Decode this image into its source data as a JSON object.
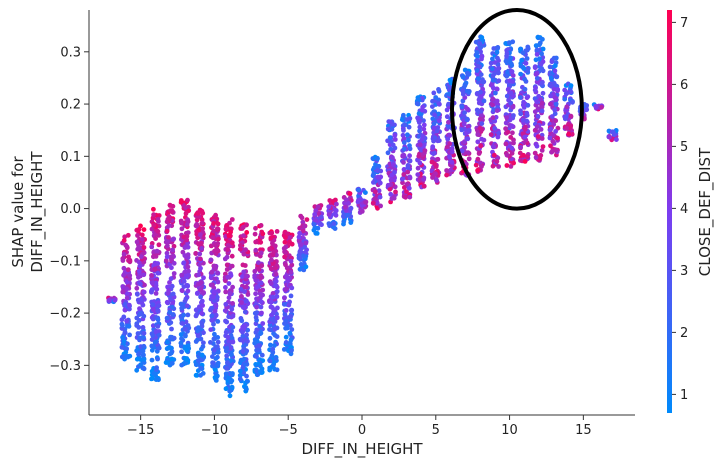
{
  "chart_data": {
    "type": "scatter",
    "title": "",
    "xlabel": "DIFF_IN_HEIGHT",
    "ylabel_lines": [
      "SHAP value for",
      "DIFF_IN_HEIGHT"
    ],
    "xlim": [
      -18.5,
      18.5
    ],
    "ylim": [
      -0.395,
      0.38
    ],
    "xticks": [
      -15,
      -10,
      -5,
      0,
      5,
      10,
      15
    ],
    "yticks": [
      -0.3,
      -0.2,
      -0.1,
      0.0,
      0.1,
      0.2,
      0.3
    ],
    "grid": false,
    "color_by": {
      "label": "CLOSE_DEF_DIST",
      "range": [
        0.7,
        7.2
      ],
      "ticks": [
        1,
        2,
        3,
        4,
        5,
        6,
        7
      ],
      "colors": [
        "#008afb",
        "#7c3df0",
        "#ff0052"
      ]
    },
    "columns": [
      {
        "x": -17,
        "ymin": -0.18,
        "ymax": -0.17
      },
      {
        "x": -16,
        "ymin": -0.29,
        "ymax": -0.05
      },
      {
        "x": -15,
        "ymin": -0.31,
        "ymax": -0.03
      },
      {
        "x": -14,
        "ymin": -0.33,
        "ymax": 0.0
      },
      {
        "x": -13,
        "ymin": -0.3,
        "ymax": 0.01
      },
      {
        "x": -12,
        "ymin": -0.3,
        "ymax": 0.02
      },
      {
        "x": -11,
        "ymin": -0.32,
        "ymax": 0.0
      },
      {
        "x": -10,
        "ymin": -0.33,
        "ymax": -0.01
      },
      {
        "x": -9,
        "ymin": -0.36,
        "ymax": -0.02
      },
      {
        "x": -8,
        "ymin": -0.35,
        "ymax": -0.03
      },
      {
        "x": -7,
        "ymin": -0.32,
        "ymax": -0.03
      },
      {
        "x": -6,
        "ymin": -0.31,
        "ymax": -0.04
      },
      {
        "x": -5,
        "ymin": -0.28,
        "ymax": -0.04
      },
      {
        "x": -4,
        "ymin": -0.12,
        "ymax": -0.01
      },
      {
        "x": -3,
        "ymin": -0.05,
        "ymax": 0.01
      },
      {
        "x": -2,
        "ymin": -0.04,
        "ymax": 0.02
      },
      {
        "x": -1,
        "ymin": -0.03,
        "ymax": 0.03
      },
      {
        "x": 0,
        "ymin": -0.01,
        "ymax": 0.04
      },
      {
        "x": 1,
        "ymin": 0.0,
        "ymax": 0.1
      },
      {
        "x": 2,
        "ymin": 0.01,
        "ymax": 0.17
      },
      {
        "x": 3,
        "ymin": 0.02,
        "ymax": 0.18
      },
      {
        "x": 4,
        "ymin": 0.04,
        "ymax": 0.22
      },
      {
        "x": 5,
        "ymin": 0.05,
        "ymax": 0.23
      },
      {
        "x": 6,
        "ymin": 0.06,
        "ymax": 0.25
      },
      {
        "x": 7,
        "ymin": 0.06,
        "ymax": 0.27
      },
      {
        "x": 8,
        "ymin": 0.07,
        "ymax": 0.33
      },
      {
        "x": 9,
        "ymin": 0.08,
        "ymax": 0.31
      },
      {
        "x": 10,
        "ymin": 0.08,
        "ymax": 0.32
      },
      {
        "x": 11,
        "ymin": 0.09,
        "ymax": 0.31
      },
      {
        "x": 12,
        "ymin": 0.09,
        "ymax": 0.33
      },
      {
        "x": 13,
        "ymin": 0.1,
        "ymax": 0.29
      },
      {
        "x": 14,
        "ymin": 0.14,
        "ymax": 0.24
      },
      {
        "x": 15,
        "ymin": 0.17,
        "ymax": 0.2
      },
      {
        "x": 16,
        "ymin": 0.19,
        "ymax": 0.2
      },
      {
        "x": 17,
        "ymin": 0.13,
        "ymax": 0.15
      }
    ],
    "annotation": {
      "shape": "ellipse",
      "cx": 10.5,
      "cy": 0.19,
      "rx": 4.4,
      "ry": 0.19
    }
  }
}
